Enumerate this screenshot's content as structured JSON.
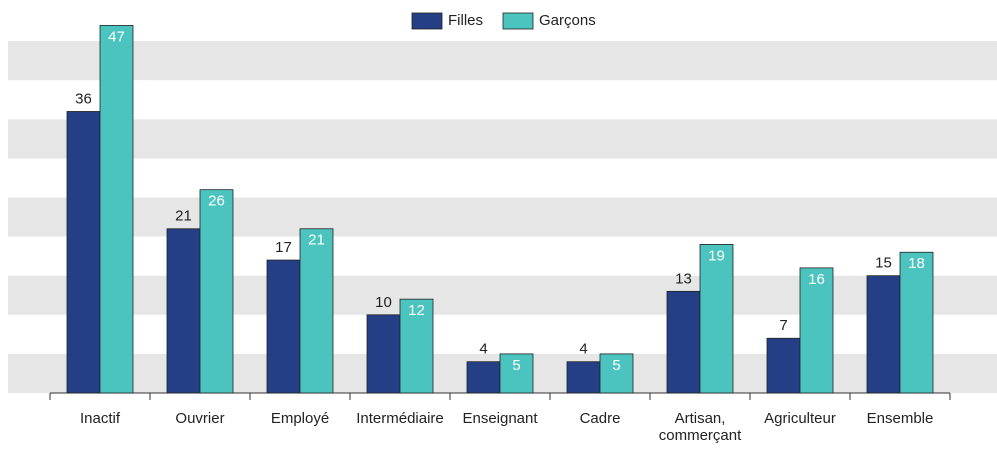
{
  "chart_data": {
    "type": "bar",
    "categories": [
      "Inactif",
      "Ouvrier",
      "Employé",
      "Intermédiaire",
      "Enseignant",
      "Cadre",
      "Artisan, commerçant",
      "Agriculteur",
      "Ensemble"
    ],
    "series": [
      {
        "name": "Filles",
        "color": "#253f87",
        "values": [
          36,
          21,
          17,
          10,
          4,
          4,
          13,
          7,
          15
        ]
      },
      {
        "name": "Garçons",
        "color": "#4bc4bf",
        "values": [
          47,
          26,
          21,
          12,
          5,
          5,
          19,
          16,
          18
        ]
      }
    ],
    "ylim": [
      0,
      50
    ],
    "yticks": [
      0,
      5,
      10,
      15,
      20,
      25,
      30,
      35,
      40,
      45,
      50
    ],
    "grid": true
  }
}
